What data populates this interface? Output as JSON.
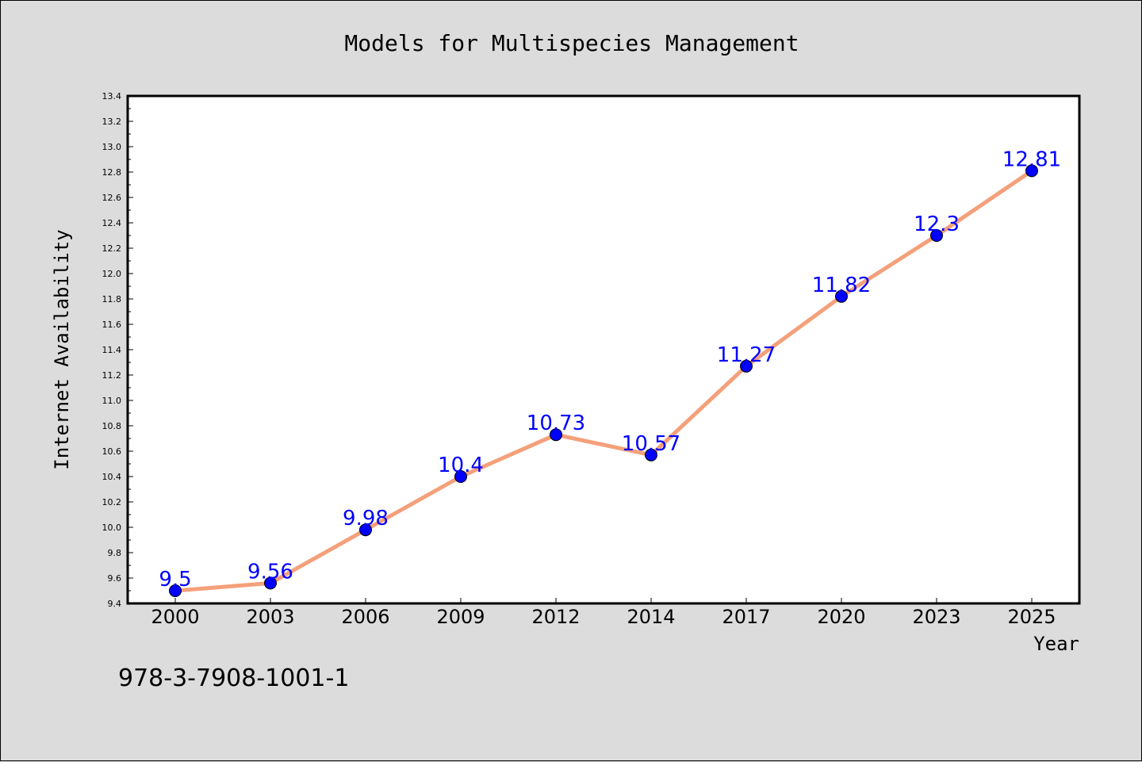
{
  "chart_data": {
    "type": "line",
    "title": "Models for Multispecies Management",
    "xlabel": "Year",
    "ylabel": "Internet Availability",
    "categories": [
      "2000",
      "2003",
      "2006",
      "2009",
      "2012",
      "2014",
      "2017",
      "2020",
      "2023",
      "2025"
    ],
    "series": [
      {
        "values": [
          9.5,
          9.56,
          9.98,
          10.4,
          10.73,
          10.57,
          11.27,
          11.82,
          12.3,
          12.81
        ],
        "line_color": "#f4a07a",
        "marker_color": "#0000ff",
        "label_color": "#0000ff"
      }
    ],
    "ylim": [
      9.4,
      13.4
    ],
    "yticks": [
      "9.4",
      "9.6",
      "9.8",
      "10.0",
      "10.2",
      "10.4",
      "10.6",
      "10.8",
      "11.0",
      "11.2",
      "11.4",
      "11.6",
      "11.8",
      "12.0",
      "12.2",
      "12.4",
      "12.6",
      "12.8",
      "13.0",
      "13.2",
      "13.4"
    ],
    "data_labels": [
      "9.5",
      "9.56",
      "9.98",
      "10.4",
      "10.73",
      "10.57",
      "11.27",
      "11.82",
      "12.3",
      "12.81"
    ],
    "grid": false,
    "legend": "none"
  },
  "footer_text": "978-3-7908-1001-1",
  "colors": {
    "background": "#dcdcdc",
    "plot_background": "#ffffff"
  }
}
